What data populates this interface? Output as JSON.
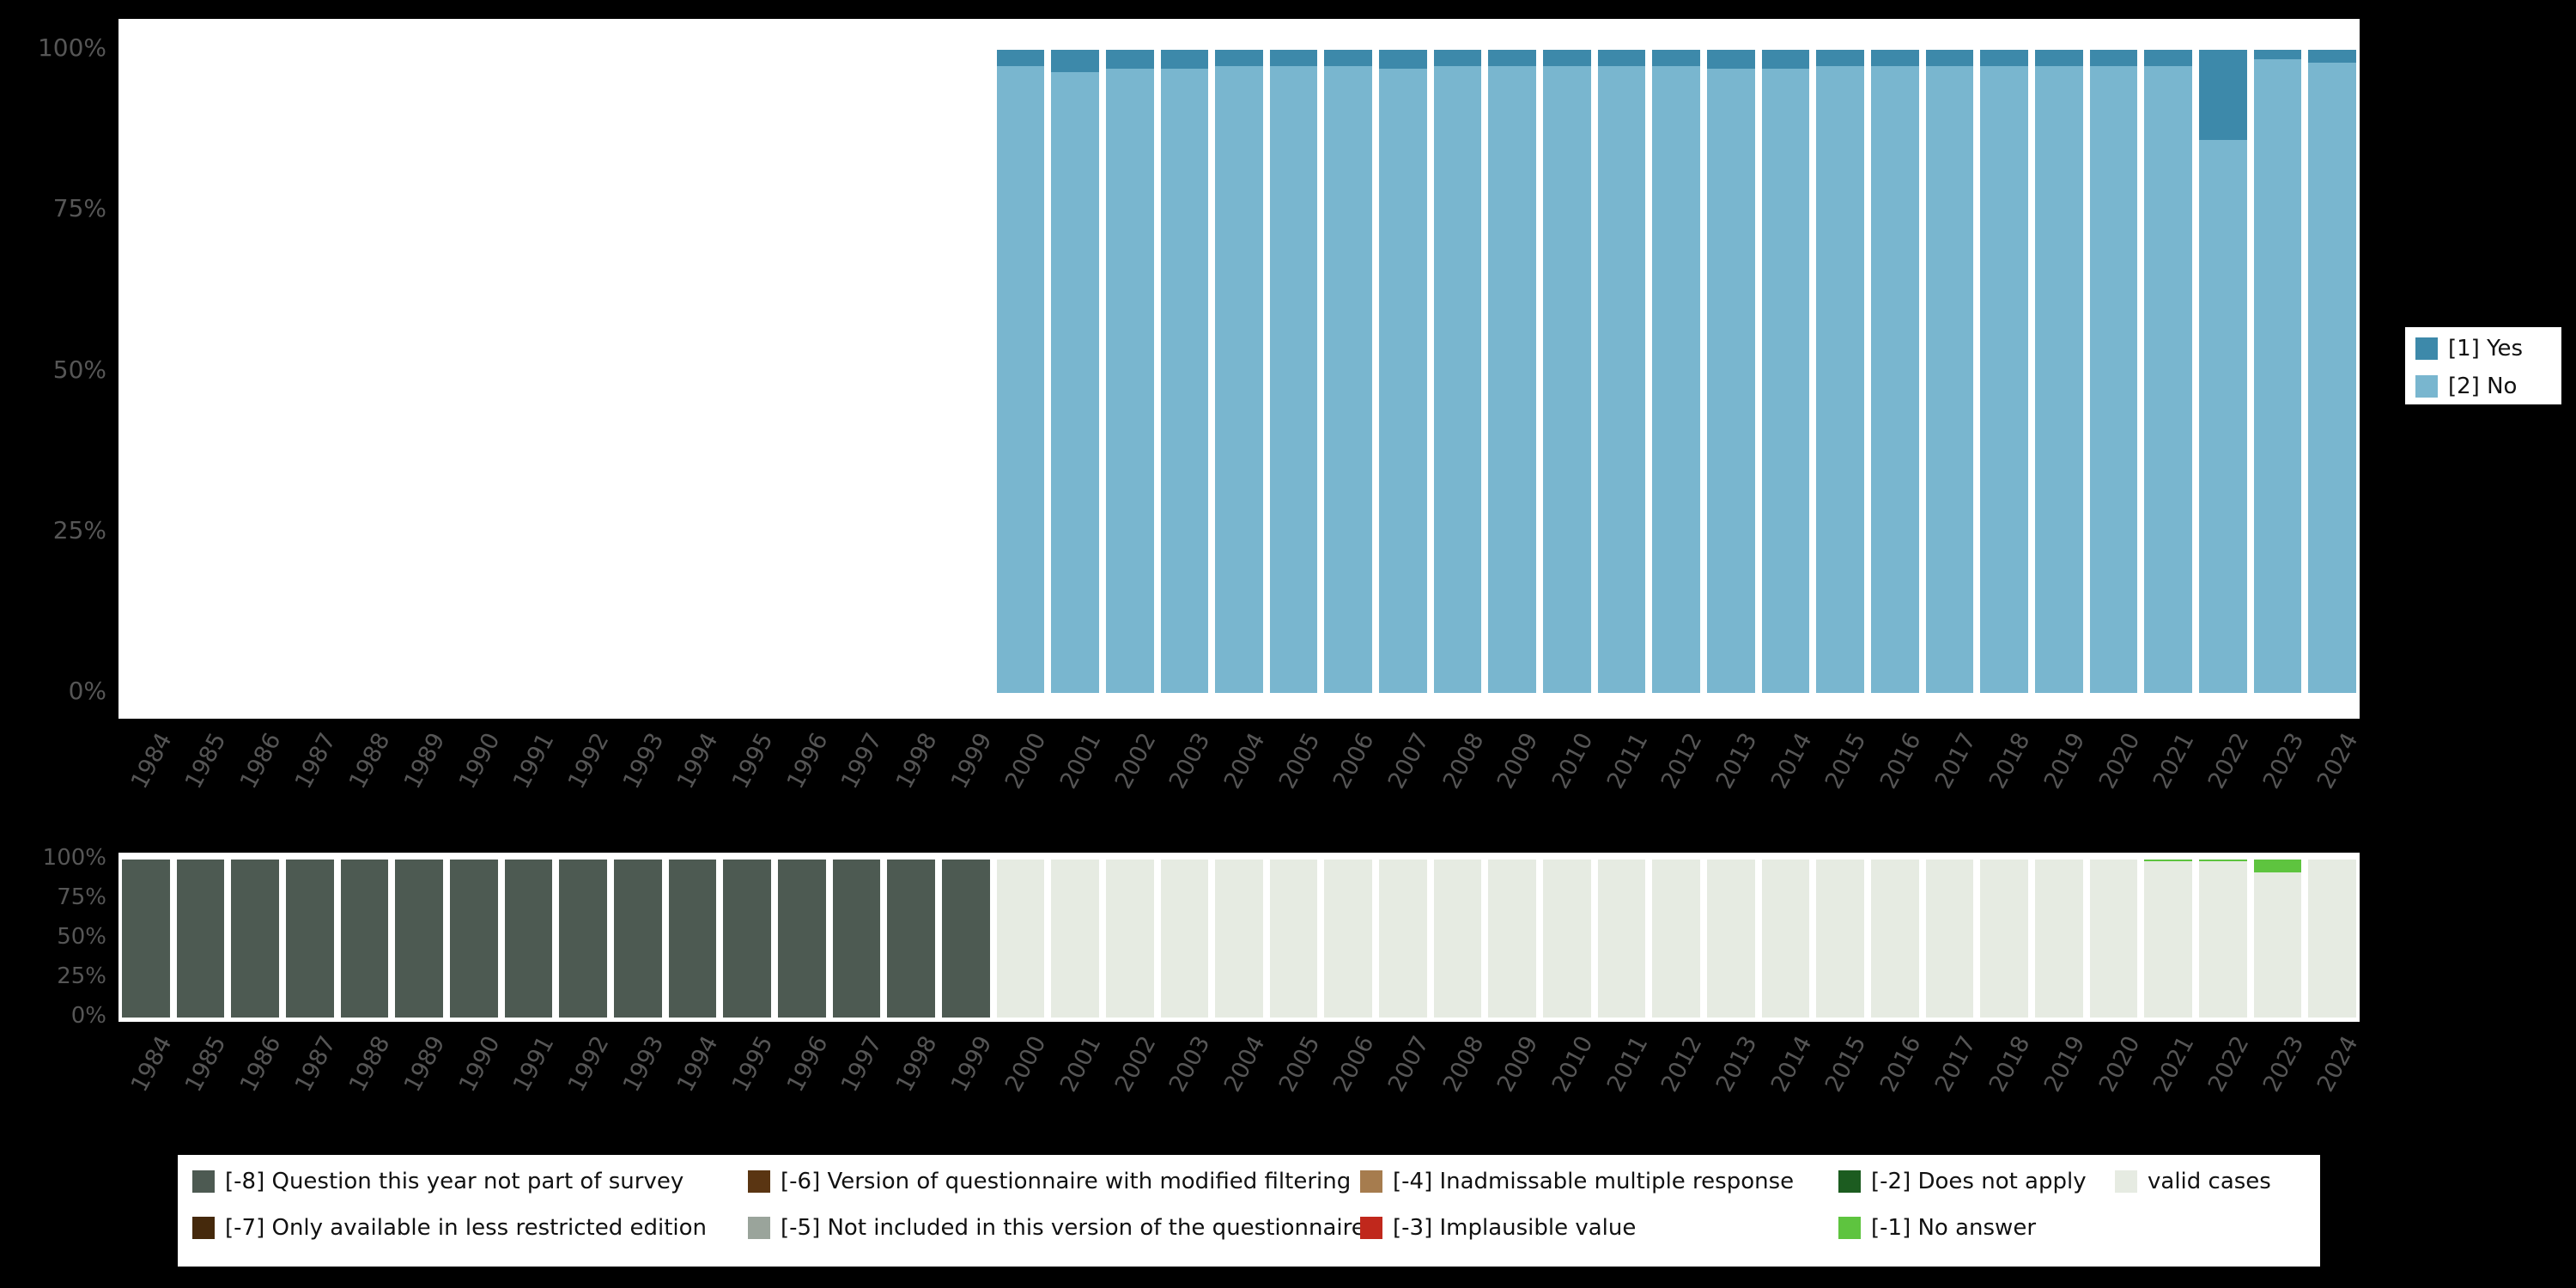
{
  "style": {
    "background": "#000000",
    "panel": "#ffffff",
    "axis_text": "#565656",
    "legend_text": "#111111"
  },
  "missing_legend": {
    "items": [
      {
        "label": "[-8] Question this year not part of survey",
        "color": "#4d5a52"
      },
      {
        "label": "[-7] Only available in less restricted edition",
        "color": "#45290c"
      },
      {
        "label": "[-6] Version of questionnaire with modified filtering",
        "color": "#5a3512"
      },
      {
        "label": "[-5] Not included in this version of the questionnaire",
        "color": "#9aa49b"
      },
      {
        "label": "[-4] Inadmissable multiple response",
        "color": "#a67c4e"
      },
      {
        "label": "[-3] Implausible value",
        "color": "#c0281c"
      },
      {
        "label": "[-2] Does not apply",
        "color": "#1c5c20"
      },
      {
        "label": "[-1] No answer",
        "color": "#5ec43f"
      },
      {
        "label": "valid cases",
        "color": "#e6ebe2"
      }
    ]
  },
  "chart_data": [
    {
      "type": "bar",
      "stacked": true,
      "percent": true,
      "title": "",
      "xlabel": "",
      "ylabel": "",
      "ylim": [
        0,
        100
      ],
      "grid": false,
      "legend_position": "right",
      "y_ticks": [
        "0%",
        "25%",
        "50%",
        "75%",
        "100%"
      ],
      "categories": [
        "1984",
        "1985",
        "1986",
        "1987",
        "1988",
        "1989",
        "1990",
        "1991",
        "1992",
        "1993",
        "1994",
        "1995",
        "1996",
        "1997",
        "1998",
        "1999",
        "2000",
        "2001",
        "2002",
        "2003",
        "2004",
        "2005",
        "2006",
        "2007",
        "2008",
        "2009",
        "2010",
        "2011",
        "2012",
        "2013",
        "2014",
        "2015",
        "2016",
        "2017",
        "2018",
        "2019",
        "2020",
        "2021",
        "2022",
        "2023",
        "2024"
      ],
      "series": [
        {
          "name": "[1] Yes",
          "color": "#3d89aa",
          "values": [
            null,
            null,
            null,
            null,
            null,
            null,
            null,
            null,
            null,
            null,
            null,
            null,
            null,
            null,
            null,
            null,
            2.5,
            3.5,
            3,
            3,
            2.5,
            2.5,
            2.5,
            3,
            2.5,
            2.5,
            2.5,
            2.5,
            2.5,
            3,
            3,
            2.5,
            2.5,
            2.5,
            2.5,
            2.5,
            2.5,
            2.5,
            14,
            1.5,
            2
          ]
        },
        {
          "name": "[2] No",
          "color": "#79b6cf",
          "values": [
            null,
            null,
            null,
            null,
            null,
            null,
            null,
            null,
            null,
            null,
            null,
            null,
            null,
            null,
            null,
            null,
            97.5,
            96.5,
            97,
            97,
            97.5,
            97.5,
            97.5,
            97,
            97.5,
            97.5,
            97.5,
            97.5,
            97.5,
            97,
            97,
            97.5,
            97.5,
            97.5,
            97.5,
            97.5,
            97.5,
            97.5,
            86,
            98.5,
            98
          ]
        }
      ]
    },
    {
      "type": "bar",
      "stacked": true,
      "percent": true,
      "title": "",
      "xlabel": "",
      "ylabel": "",
      "ylim": [
        0,
        100
      ],
      "grid": false,
      "legend_position": "bottom",
      "y_ticks": [
        "0%",
        "25%",
        "50%",
        "75%",
        "100%"
      ],
      "categories": [
        "1984",
        "1985",
        "1986",
        "1987",
        "1988",
        "1989",
        "1990",
        "1991",
        "1992",
        "1993",
        "1994",
        "1995",
        "1996",
        "1997",
        "1998",
        "1999",
        "2000",
        "2001",
        "2002",
        "2003",
        "2004",
        "2005",
        "2006",
        "2007",
        "2008",
        "2009",
        "2010",
        "2011",
        "2012",
        "2013",
        "2014",
        "2015",
        "2016",
        "2017",
        "2018",
        "2019",
        "2020",
        "2021",
        "2022",
        "2023",
        "2024"
      ],
      "series": [
        {
          "name": "[-8] Question this year not part of survey",
          "color": "#4d5a52",
          "values": [
            100,
            100,
            100,
            100,
            100,
            100,
            100,
            100,
            100,
            100,
            100,
            100,
            100,
            100,
            100,
            100,
            0,
            0,
            0,
            0,
            0,
            0,
            0,
            0,
            0,
            0,
            0,
            0,
            0,
            0,
            0,
            0,
            0,
            0,
            0,
            0,
            0,
            0,
            0,
            0,
            0
          ]
        },
        {
          "name": "[-1] No answer",
          "color": "#5ec43f",
          "values": [
            0,
            0,
            0,
            0,
            0,
            0,
            0,
            0,
            0,
            0,
            0,
            0,
            0,
            0,
            0,
            0,
            0,
            0,
            0,
            0,
            0,
            0,
            0,
            0,
            0,
            0,
            0,
            0,
            0,
            0,
            0,
            0,
            0,
            0,
            0,
            0,
            0,
            1,
            1,
            8,
            0
          ]
        },
        {
          "name": "valid cases",
          "color": "#e6ebe2",
          "values": [
            0,
            0,
            0,
            0,
            0,
            0,
            0,
            0,
            0,
            0,
            0,
            0,
            0,
            0,
            0,
            0,
            100,
            100,
            100,
            100,
            100,
            100,
            100,
            100,
            100,
            100,
            100,
            100,
            100,
            100,
            100,
            100,
            100,
            100,
            100,
            100,
            100,
            99,
            99,
            92,
            100
          ]
        }
      ]
    }
  ]
}
